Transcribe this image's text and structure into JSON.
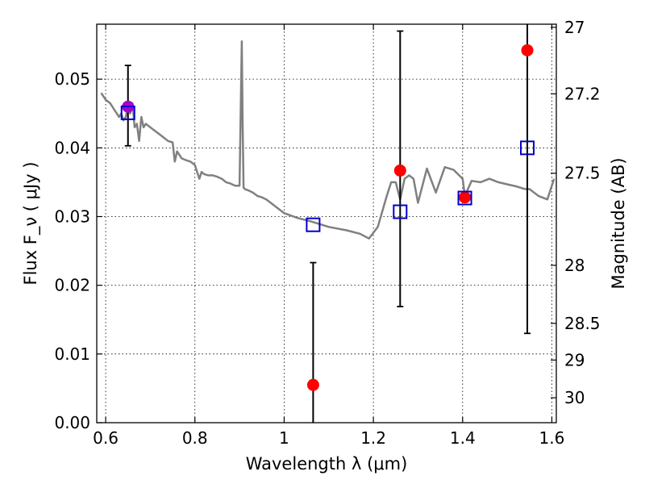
{
  "chart_data": {
    "type": "scatter",
    "title": "",
    "xlabel": "Wavelength  λ (μm)",
    "ylabel": "Flux  F_ν  ( μJy )",
    "ylabel_right": "Magnitude (AB)",
    "xlim": [
      0.58,
      1.61
    ],
    "ylim": [
      0.0,
      0.058
    ],
    "x_ticks": [
      0.6,
      0.8,
      1.0,
      1.2,
      1.4,
      1.6
    ],
    "x_tick_labels": [
      "0.6",
      "0.8",
      "1",
      "1.2",
      "1.4",
      "1.6"
    ],
    "y_ticks": [
      0.0,
      0.01,
      0.02,
      0.03,
      0.04,
      0.05
    ],
    "y_tick_labels": [
      "0.00",
      "0.01",
      "0.02",
      "0.03",
      "0.04",
      "0.05"
    ],
    "mag_ticks": [
      27,
      27.2,
      27.5,
      28,
      28.5,
      29,
      30
    ],
    "mag_tick_labels": [
      "27",
      "27.2",
      "27.5",
      "28",
      "28.5",
      "29",
      "30"
    ],
    "grid": true,
    "colors": {
      "model": "#808080",
      "observed": "#ff0000",
      "model_photometry": "#0000cc",
      "highlight": "#aa00cc",
      "errorbar": "#000000"
    },
    "series": [
      {
        "type": "line",
        "x": [
          0.59,
          0.6,
          0.61,
          0.62,
          0.63,
          0.635,
          0.64,
          0.645,
          0.65,
          0.655,
          0.66,
          0.665,
          0.67,
          0.675,
          0.68,
          0.685,
          0.69,
          0.7,
          0.71,
          0.72,
          0.73,
          0.74,
          0.75,
          0.755,
          0.76,
          0.77,
          0.78,
          0.79,
          0.8,
          0.81,
          0.815,
          0.82,
          0.83,
          0.84,
          0.85,
          0.86,
          0.87,
          0.88,
          0.89,
          0.9,
          0.905,
          0.907,
          0.909,
          0.912,
          0.92,
          0.93,
          0.94,
          0.95,
          0.96,
          1.0,
          1.03,
          1.06,
          1.1,
          1.14,
          1.17,
          1.19,
          1.21,
          1.23,
          1.24,
          1.25,
          1.26,
          1.27,
          1.28,
          1.29,
          1.3,
          1.32,
          1.34,
          1.36,
          1.38,
          1.4,
          1.405,
          1.42,
          1.44,
          1.46,
          1.48,
          1.5,
          1.52,
          1.54,
          1.55,
          1.56,
          1.57,
          1.59,
          1.605
        ],
        "y": [
          0.048,
          0.047,
          0.0465,
          0.0455,
          0.0445,
          0.045,
          0.044,
          0.0445,
          0.046,
          0.045,
          0.0465,
          0.043,
          0.0435,
          0.041,
          0.0445,
          0.043,
          0.0435,
          0.043,
          0.0425,
          0.042,
          0.0415,
          0.041,
          0.0408,
          0.038,
          0.0395,
          0.0385,
          0.0382,
          0.038,
          0.0375,
          0.0355,
          0.0365,
          0.0362,
          0.036,
          0.036,
          0.0358,
          0.0355,
          0.035,
          0.0348,
          0.0345,
          0.0345,
          0.0555,
          0.043,
          0.0342,
          0.034,
          0.0338,
          0.0335,
          0.033,
          0.0328,
          0.0325,
          0.0305,
          0.0298,
          0.0293,
          0.0285,
          0.028,
          0.0275,
          0.0268,
          0.0285,
          0.033,
          0.035,
          0.035,
          0.0325,
          0.0355,
          0.036,
          0.0355,
          0.032,
          0.037,
          0.0335,
          0.0372,
          0.0368,
          0.0355,
          0.033,
          0.0352,
          0.035,
          0.0355,
          0.035,
          0.0347,
          0.0344,
          0.034,
          0.034,
          0.0335,
          0.033,
          0.0325,
          0.0355
        ]
      },
      {
        "type": "scatter",
        "marker": "square",
        "x": [
          0.65,
          1.065,
          1.26,
          1.405,
          1.545
        ],
        "y": [
          0.0451,
          0.0288,
          0.0307,
          0.0327,
          0.04
        ]
      },
      {
        "type": "scatter",
        "marker": "circle",
        "x": [
          0.65,
          1.065,
          1.26,
          1.405,
          1.545
        ],
        "y": [
          0.046,
          0.0055,
          0.0367,
          0.0328,
          0.0542
        ],
        "yerr_low": [
          0.0057,
          0.0055,
          0.0198,
          0.0,
          0.0412
        ],
        "yerr_high": [
          0.006,
          0.0178,
          0.0203,
          0.0,
          0.0058
        ]
      }
    ]
  }
}
